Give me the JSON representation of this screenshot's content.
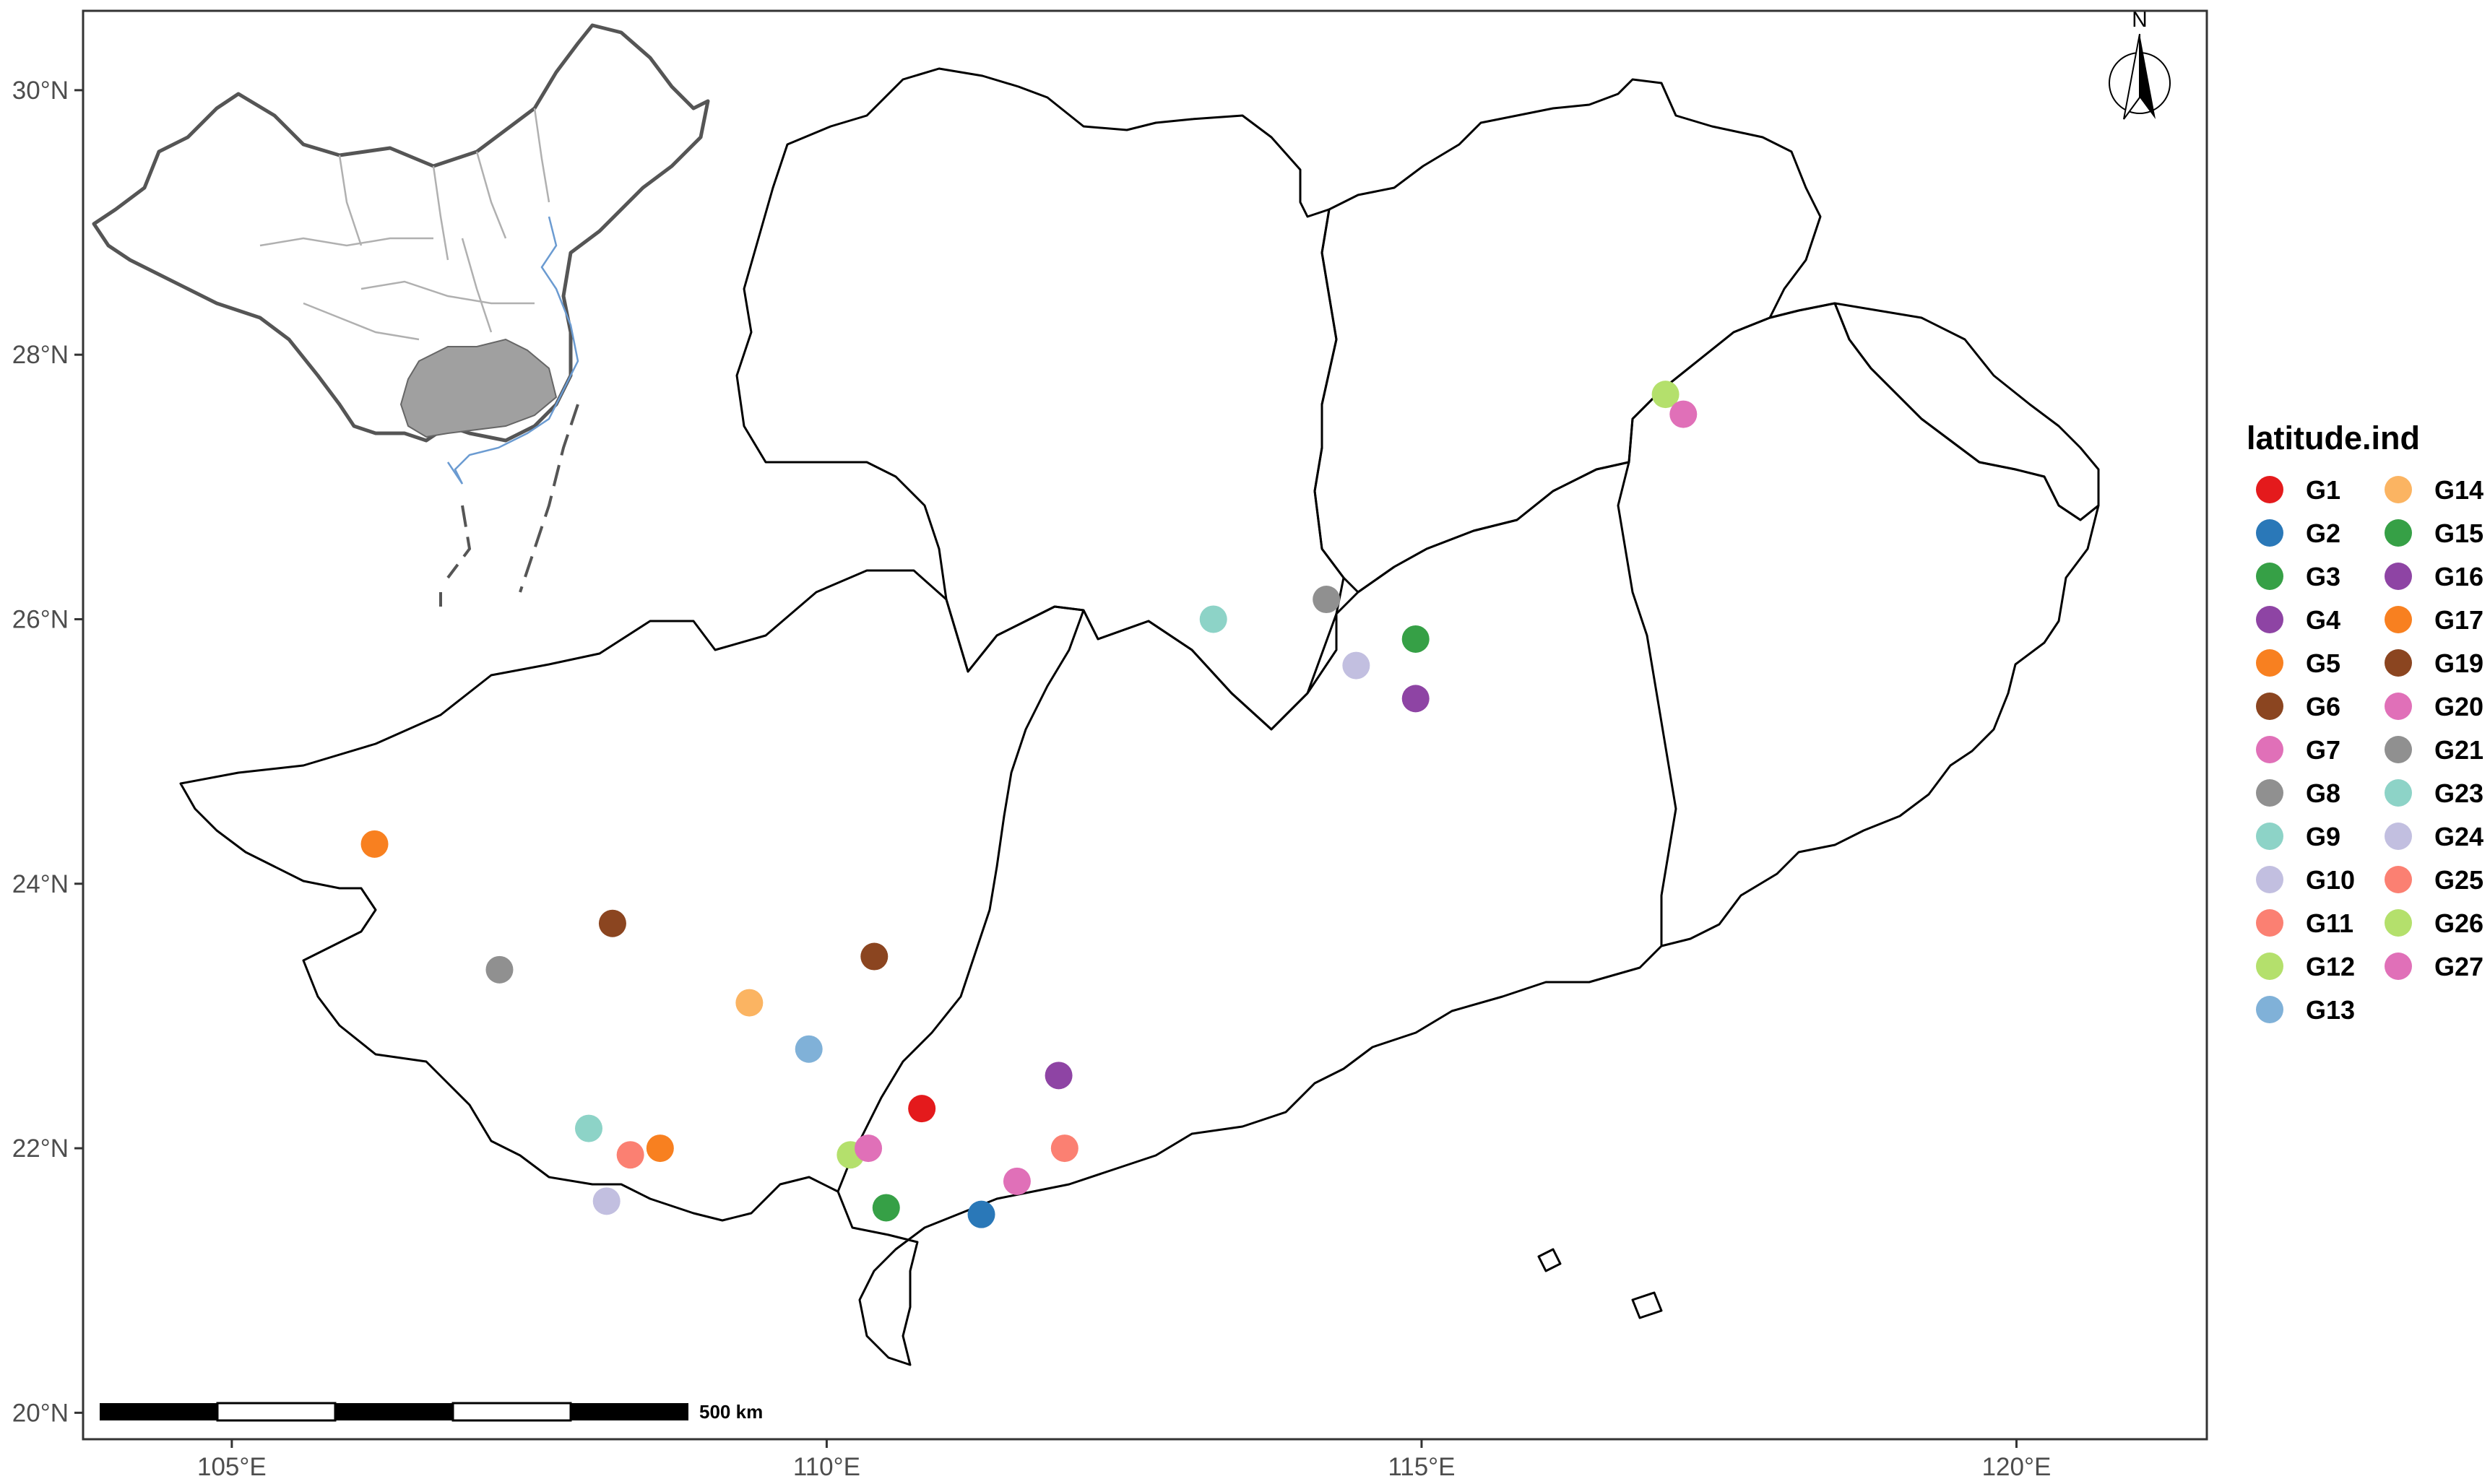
{
  "map": {
    "lat_ticks": [
      {
        "value": 30,
        "label": "30°N"
      },
      {
        "value": 28,
        "label": "28°N"
      },
      {
        "value": 26,
        "label": "26°N"
      },
      {
        "value": 24,
        "label": "24°N"
      },
      {
        "value": 22,
        "label": "22°N"
      },
      {
        "value": 20,
        "label": "20°N"
      }
    ],
    "lon_ticks": [
      {
        "value": 105,
        "label": "105°E"
      },
      {
        "value": 110,
        "label": "110°E"
      },
      {
        "value": 115,
        "label": "115°E"
      },
      {
        "value": 120,
        "label": "120°E"
      }
    ],
    "xlim": [
      103.75,
      121.6
    ],
    "ylim": [
      19.8,
      30.6
    ],
    "scale_bar_label": "500 km",
    "north_label": "N",
    "colors": {
      "boundary": "#000000",
      "panel_border": "#333333",
      "inset_fill": "#a0a0a0",
      "inset_coast": "#6b9bd1",
      "inset_border": "#b0b0b0"
    }
  },
  "legend": {
    "title": "latitude.ind",
    "items": [
      {
        "label": "G1",
        "color": "#e41a1c"
      },
      {
        "label": "G2",
        "color": "#2a78b8"
      },
      {
        "label": "G3",
        "color": "#36a046"
      },
      {
        "label": "G4",
        "color": "#8e44a4"
      },
      {
        "label": "G5",
        "color": "#f88020"
      },
      {
        "label": "G6",
        "color": "#8b4520"
      },
      {
        "label": "G7",
        "color": "#e070b8"
      },
      {
        "label": "G8",
        "color": "#909090"
      },
      {
        "label": "G9",
        "color": "#8dd3c7"
      },
      {
        "label": "G10",
        "color": "#c2bfe0"
      },
      {
        "label": "G11",
        "color": "#fb8072"
      },
      {
        "label": "G12",
        "color": "#b4e06c"
      },
      {
        "label": "G13",
        "color": "#80b1d8"
      },
      {
        "label": "G14",
        "color": "#fbb462"
      },
      {
        "label": "G15",
        "color": "#36a046"
      },
      {
        "label": "G16",
        "color": "#8e44a4"
      },
      {
        "label": "G17",
        "color": "#f88020"
      },
      {
        "label": "G19",
        "color": "#8b4520"
      },
      {
        "label": "G20",
        "color": "#e070b8"
      },
      {
        "label": "G21",
        "color": "#909090"
      },
      {
        "label": "G23",
        "color": "#8dd3c7"
      },
      {
        "label": "G24",
        "color": "#c2bfe0"
      },
      {
        "label": "G25",
        "color": "#fb8072"
      },
      {
        "label": "G26",
        "color": "#b4e06c"
      },
      {
        "label": "G27",
        "color": "#e070b8"
      }
    ]
  },
  "points": [
    {
      "group": "G1",
      "lon": 110.8,
      "lat": 22.3,
      "color": "#e41a1c"
    },
    {
      "group": "G2",
      "lon": 111.3,
      "lat": 21.5,
      "color": "#2a78b8"
    },
    {
      "group": "G3",
      "lon": 110.5,
      "lat": 21.55,
      "color": "#36a046"
    },
    {
      "group": "G4",
      "lon": 111.95,
      "lat": 22.55,
      "color": "#8e44a4"
    },
    {
      "group": "G5",
      "lon": 108.6,
      "lat": 22.0,
      "color": "#f88020"
    },
    {
      "group": "G6",
      "lon": 110.4,
      "lat": 23.45,
      "color": "#8b4520"
    },
    {
      "group": "G7",
      "lon": 111.6,
      "lat": 21.75,
      "color": "#e070b8"
    },
    {
      "group": "G8",
      "lon": 107.25,
      "lat": 23.35,
      "color": "#909090"
    },
    {
      "group": "G9",
      "lon": 108.0,
      "lat": 22.15,
      "color": "#8dd3c7"
    },
    {
      "group": "G10",
      "lon": 108.15,
      "lat": 21.6,
      "color": "#c2bfe0"
    },
    {
      "group": "G11",
      "lon": 108.35,
      "lat": 21.95,
      "color": "#fb8072"
    },
    {
      "group": "G12",
      "lon": 110.2,
      "lat": 21.95,
      "color": "#b4e06c"
    },
    {
      "group": "G13",
      "lon": 109.85,
      "lat": 22.75,
      "color": "#80b1d8"
    },
    {
      "group": "G14",
      "lon": 109.35,
      "lat": 23.1,
      "color": "#fbb462"
    },
    {
      "group": "G15",
      "lon": 114.95,
      "lat": 25.85,
      "color": "#36a046"
    },
    {
      "group": "G16",
      "lon": 114.95,
      "lat": 25.4,
      "color": "#8e44a4"
    },
    {
      "group": "G17",
      "lon": 106.2,
      "lat": 24.3,
      "color": "#f88020"
    },
    {
      "group": "G19",
      "lon": 108.2,
      "lat": 23.7,
      "color": "#8b4520"
    },
    {
      "group": "G20",
      "lon": 110.35,
      "lat": 22.0,
      "color": "#e070b8"
    },
    {
      "group": "G21",
      "lon": 114.2,
      "lat": 26.15,
      "color": "#909090"
    },
    {
      "group": "G23",
      "lon": 113.25,
      "lat": 26.0,
      "color": "#8dd3c7"
    },
    {
      "group": "G24",
      "lon": 114.45,
      "lat": 25.65,
      "color": "#c2bfe0"
    },
    {
      "group": "G25",
      "lon": 112.0,
      "lat": 22.0,
      "color": "#fb8072"
    },
    {
      "group": "G26",
      "lon": 117.05,
      "lat": 27.7,
      "color": "#b4e06c"
    },
    {
      "group": "G27",
      "lon": 117.2,
      "lat": 27.55,
      "color": "#e070b8"
    }
  ]
}
